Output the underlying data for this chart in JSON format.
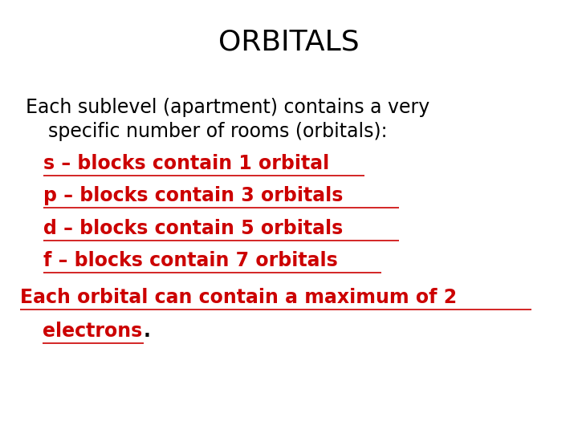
{
  "title": "ORBITALS",
  "title_fontsize": 26,
  "title_color": "#000000",
  "background_color": "#ffffff",
  "intro_line1": "Each sublevel (apartment) contains a very",
  "intro_line2": "specific number of rooms (orbitals):",
  "intro_color": "#000000",
  "intro_fontsize": 17,
  "bullet_lines": [
    "s – blocks contain 1 orbital",
    "p – blocks contain 3 orbitals",
    "d – blocks contain 5 orbitals",
    "f – blocks contain 7 orbitals"
  ],
  "bullet_color": "#cc0000",
  "bullet_fontsize": 17,
  "underline_lengths": [
    0.555,
    0.615,
    0.615,
    0.585
  ],
  "closing_line1": "Each orbital can contain a maximum of 2",
  "closing_line2": "electrons",
  "closing_punct": ".",
  "closing_color": "#cc0000",
  "closing_punct_color": "#000000",
  "closing_fontsize": 17,
  "closing_line1_underline": 0.885,
  "closing_line2_underline": 0.175
}
